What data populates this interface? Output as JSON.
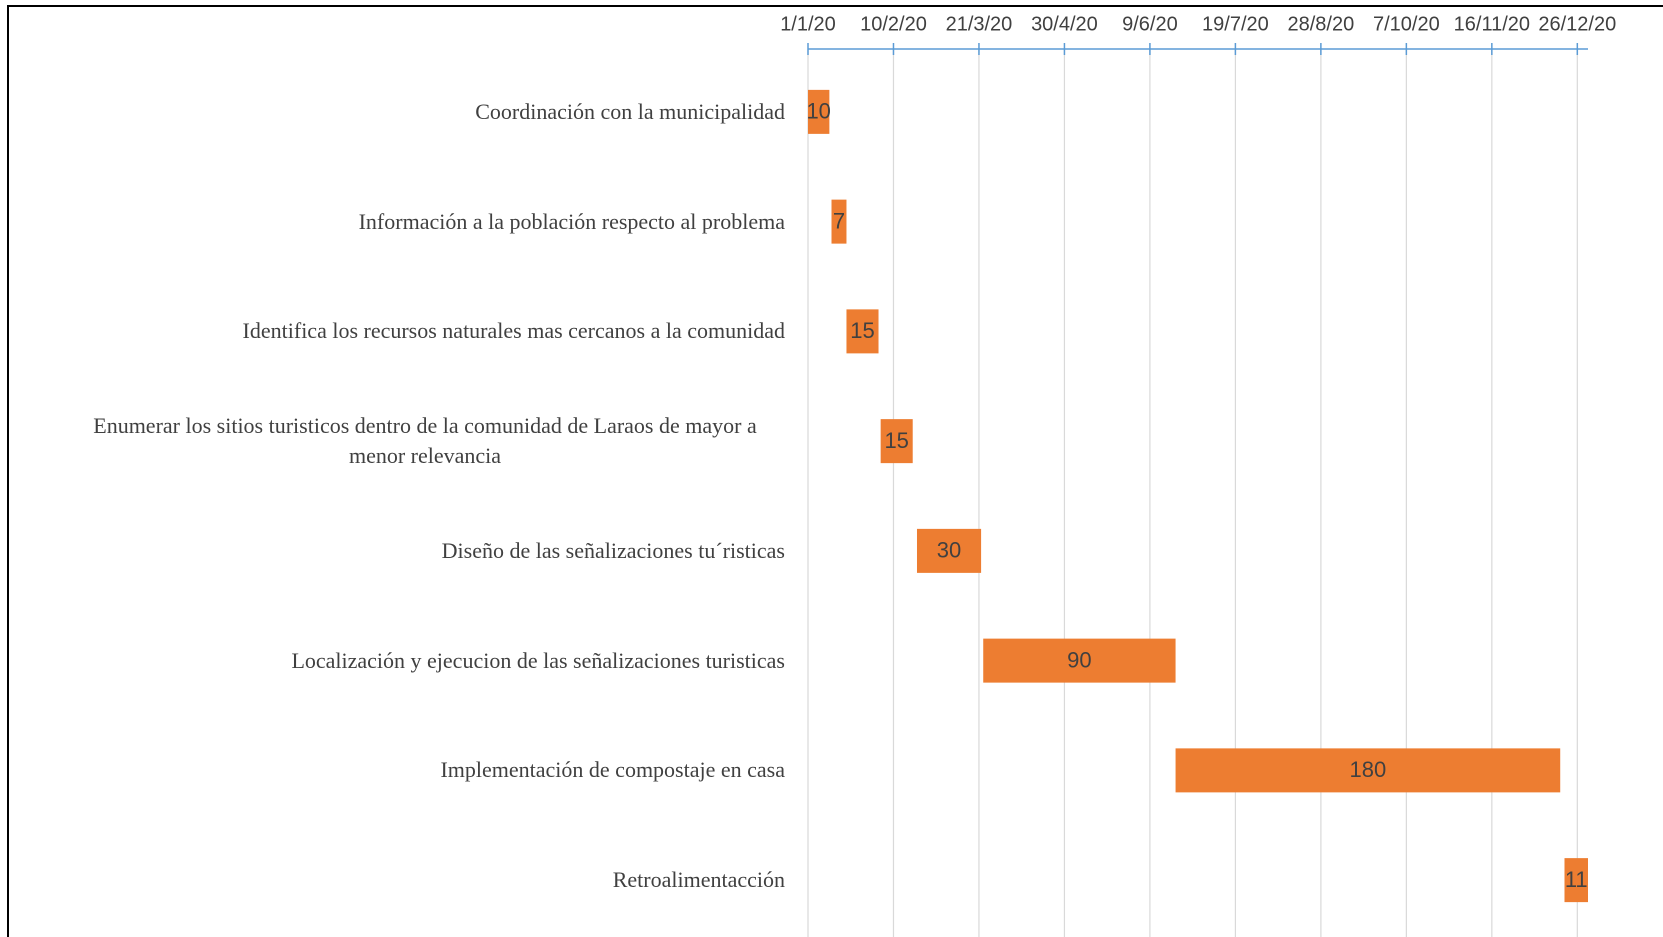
{
  "chart_data": {
    "type": "gantt",
    "categories": [
      "Coordinación con la municipalidad",
      "Información a la población respecto al problema",
      "Identifica los recursos naturales mas cercanos a la comunidad",
      "Enumerar  los sitios turisticos dentro de la comunidad de Laraos de mayor a menor relevancia",
      "Diseño  de las señalizaciones tu´risticas",
      "Localización y ejecucion de las señalizaciones turisticas",
      "Implementación de compostaje en casa",
      "Retroalimentacción"
    ],
    "starts": [
      "2020-01-01",
      "2020-01-12",
      "2020-01-19",
      "2020-02-04",
      "2020-02-21",
      "2020-03-23",
      "2020-06-21",
      "2020-12-20"
    ],
    "values": [
      10,
      7,
      15,
      15,
      30,
      90,
      180,
      11
    ],
    "color": "#ed7d31",
    "xlim": [
      "2020-01-01",
      "2020-12-31"
    ],
    "xticks": [
      {
        "value": "2020-01-01",
        "label": "1/1/20"
      },
      {
        "value": "2020-02-10",
        "label": "10/2/20"
      },
      {
        "value": "2020-03-21",
        "label": "21/3/20"
      },
      {
        "value": "2020-04-30",
        "label": "30/4/20"
      },
      {
        "value": "2020-06-09",
        "label": "9/6/20"
      },
      {
        "value": "2020-07-19",
        "label": "19/7/20"
      },
      {
        "value": "2020-08-28",
        "label": "28/8/20"
      },
      {
        "value": "2020-10-07",
        "label": "7/10/20"
      },
      {
        "value": "2020-11-16",
        "label": "16/11/20"
      },
      {
        "value": "2020-12-26",
        "label": "26/12/20"
      }
    ],
    "grid": true
  }
}
